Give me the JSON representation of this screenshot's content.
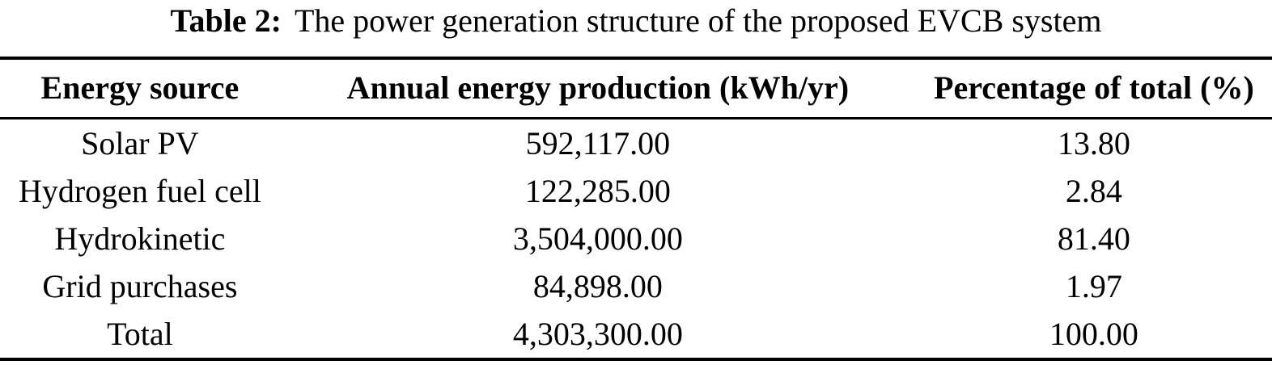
{
  "caption": {
    "label": "Table 2:",
    "text": "The power generation structure of the proposed EVCB system"
  },
  "table": {
    "columns": [
      "Energy source",
      "Annual energy production (kWh/yr)",
      "Percentage of total (%)"
    ],
    "rows": [
      [
        "Solar PV",
        "592,117.00",
        "13.80"
      ],
      [
        "Hydrogen fuel cell",
        "122,285.00",
        "2.84"
      ],
      [
        "Hydrokinetic",
        "3,504,000.00",
        "81.40"
      ],
      [
        "Grid purchases",
        "84,898.00",
        "1.97"
      ],
      [
        "Total",
        "4,303,300.00",
        "100.00"
      ]
    ]
  },
  "chart_data": {
    "type": "table",
    "title": "Table 2: The power generation structure of the proposed EVCB system",
    "columns": [
      "Energy source",
      "Annual energy production (kWh/yr)",
      "Percentage of total (%)"
    ],
    "rows": [
      {
        "energy_source": "Solar PV",
        "annual_energy_production_kwh_yr": 592117.0,
        "percentage_of_total": 13.8
      },
      {
        "energy_source": "Hydrogen fuel cell",
        "annual_energy_production_kwh_yr": 122285.0,
        "percentage_of_total": 2.84
      },
      {
        "energy_source": "Hydrokinetic",
        "annual_energy_production_kwh_yr": 3504000.0,
        "percentage_of_total": 81.4
      },
      {
        "energy_source": "Grid purchases",
        "annual_energy_production_kwh_yr": 84898.0,
        "percentage_of_total": 1.97
      },
      {
        "energy_source": "Total",
        "annual_energy_production_kwh_yr": 4303300.0,
        "percentage_of_total": 100.0
      }
    ]
  },
  "colors": {
    "text": "#000000",
    "background": "#ffffff",
    "rule": "#000000"
  }
}
